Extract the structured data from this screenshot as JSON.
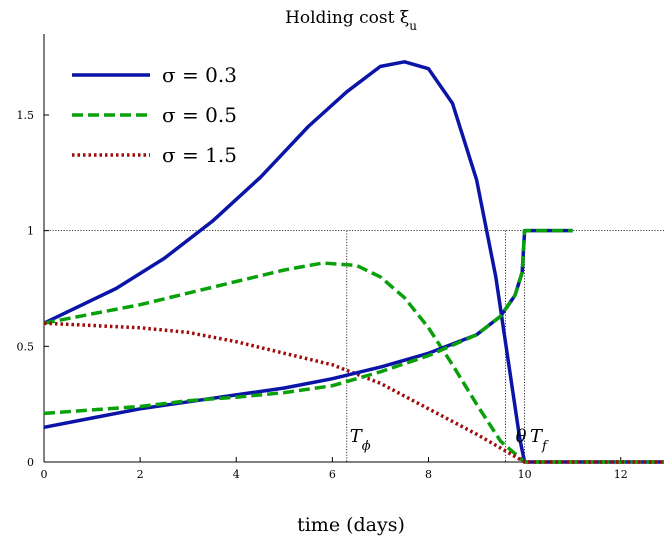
{
  "chart_data": {
    "type": "line",
    "title": "Holding cost ξ",
    "title_sub": "u",
    "xlabel": "time (days)",
    "ylabel": "",
    "xlim": [
      0,
      12.9
    ],
    "ylim": [
      0,
      1.85
    ],
    "xticks": [
      0,
      2,
      4,
      6,
      8,
      10,
      12
    ],
    "yticks": [
      0,
      0.5,
      1,
      1.5
    ],
    "ytick_labels": [
      "0",
      "0.5",
      "1",
      "1.5"
    ],
    "reference_line_y": 1,
    "vertical_markers": [
      6.3,
      9.6,
      10.0
    ],
    "annotations": [
      {
        "text": "T",
        "sub": "ϕ",
        "x": 6.3,
        "y": 0.06
      },
      {
        "text": "θ",
        "sub": "",
        "x": 9.75,
        "y": 0.06
      },
      {
        "text": "T",
        "sub": "f",
        "x": 10.05,
        "y": 0.06
      }
    ],
    "legend_position": "top-left",
    "series": [
      {
        "name": "σ = 0.3",
        "color": "#0a14a6",
        "dash": "solid",
        "x": [
          0,
          0.6,
          1.5,
          2.5,
          3.5,
          4.5,
          5.5,
          6.3,
          7.0,
          7.5,
          8.0,
          8.5,
          9.0,
          9.4,
          9.7,
          9.9,
          10.0,
          10.5,
          11.0,
          12.0,
          12.9
        ],
        "y": [
          0.6,
          0.66,
          0.75,
          0.88,
          1.04,
          1.23,
          1.45,
          1.6,
          1.71,
          1.73,
          1.7,
          1.55,
          1.22,
          0.8,
          0.38,
          0.1,
          0.0,
          0.0,
          0.0,
          0.0,
          0.0
        ]
      },
      {
        "name": "σ = 0.5",
        "color": "#0aa00a",
        "dash": "dashed",
        "x": [
          0,
          1,
          2,
          3,
          4,
          5,
          5.8,
          6.5,
          7.0,
          7.5,
          8.0,
          8.5,
          9.0,
          9.5,
          10.0,
          10.5,
          11.0,
          12.0,
          12.9
        ],
        "y": [
          0.6,
          0.64,
          0.68,
          0.73,
          0.78,
          0.83,
          0.86,
          0.85,
          0.8,
          0.71,
          0.58,
          0.42,
          0.25,
          0.09,
          0.0,
          0.0,
          0.0,
          0.0,
          0.0
        ]
      },
      {
        "name": "σ = 1.5",
        "color": "#a00a0a",
        "dash": "dotted",
        "x": [
          0,
          1,
          2,
          3,
          4,
          5,
          6,
          7,
          8,
          9,
          9.5,
          10.0,
          10.5,
          11.0,
          12.0,
          12.9
        ],
        "y": [
          0.6,
          0.59,
          0.58,
          0.56,
          0.52,
          0.47,
          0.42,
          0.34,
          0.23,
          0.12,
          0.06,
          0.0,
          0.0,
          0.0,
          0.0,
          0.0
        ]
      },
      {
        "name": "",
        "color": "#0a14a6",
        "dash": "solid",
        "x": [
          0,
          1,
          2,
          3,
          4,
          5,
          6,
          7,
          8,
          9,
          9.5,
          9.8,
          9.95,
          10.0,
          10.5,
          11.0
        ],
        "y": [
          0.15,
          0.19,
          0.23,
          0.26,
          0.29,
          0.32,
          0.36,
          0.41,
          0.47,
          0.55,
          0.63,
          0.72,
          0.82,
          1.0,
          1.0,
          1.0
        ]
      },
      {
        "name": "",
        "color": "#0aa00a",
        "dash": "dashed",
        "x": [
          0,
          1,
          2,
          3,
          4,
          5,
          6,
          7,
          8,
          9,
          9.5,
          9.8,
          9.95,
          10.0,
          10.5,
          11.0
        ],
        "y": [
          0.21,
          0.225,
          0.24,
          0.265,
          0.28,
          0.3,
          0.33,
          0.39,
          0.46,
          0.55,
          0.63,
          0.72,
          0.82,
          1.0,
          1.0,
          1.0
        ]
      }
    ]
  }
}
